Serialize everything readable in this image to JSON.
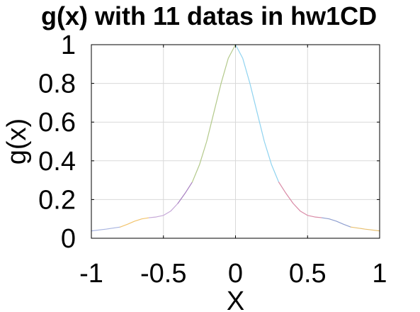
{
  "chart_data": {
    "type": "line",
    "title": "g(x) with 11 datas in hw1CD",
    "xlabel": "X",
    "ylabel": "g(x)",
    "xlim": [
      -1,
      1
    ],
    "ylim": [
      0,
      1
    ],
    "xticks": [
      -1,
      -0.5,
      0,
      0.5,
      1
    ],
    "xtick_labels": [
      "-1",
      "-0.5",
      "0",
      "0.5",
      "1"
    ],
    "yticks": [
      0,
      0.2,
      0.4,
      0.6,
      0.8,
      1
    ],
    "ytick_labels": [
      "0",
      "0.2",
      "0.4",
      "0.6",
      "0.8",
      "1"
    ],
    "grid": true,
    "series": [
      {
        "color": "#a8b4e0",
        "x": [
          -1.0,
          -0.9,
          -0.8
        ],
        "y": [
          0.038,
          0.047,
          0.058
        ]
      },
      {
        "color": "#f2c46d",
        "x": [
          -0.8,
          -0.75,
          -0.7,
          -0.65,
          -0.6
        ],
        "y": [
          0.058,
          0.072,
          0.088,
          0.1,
          0.106
        ]
      },
      {
        "color": "#c6a8d8",
        "x": [
          -0.6,
          -0.55,
          -0.5,
          -0.45,
          -0.4
        ],
        "y": [
          0.106,
          0.11,
          0.118,
          0.14,
          0.18
        ]
      },
      {
        "color": "#a77fc0",
        "x": [
          -0.4,
          -0.35,
          -0.3
        ],
        "y": [
          0.18,
          0.232,
          0.29
        ]
      },
      {
        "color": "#b3c98a",
        "x": [
          -0.3,
          -0.25,
          -0.2,
          -0.15,
          -0.1,
          -0.05,
          0.0
        ],
        "y": [
          0.29,
          0.38,
          0.5,
          0.65,
          0.8,
          0.93,
          1.0
        ]
      },
      {
        "color": "#8fd3f0",
        "x": [
          0.0,
          0.05,
          0.1,
          0.15,
          0.2,
          0.25,
          0.3
        ],
        "y": [
          1.0,
          0.93,
          0.8,
          0.65,
          0.5,
          0.38,
          0.29
        ]
      },
      {
        "color": "#d98aa6",
        "x": [
          0.3,
          0.35,
          0.4,
          0.45,
          0.5,
          0.55,
          0.6
        ],
        "y": [
          0.29,
          0.232,
          0.18,
          0.14,
          0.118,
          0.11,
          0.106
        ]
      },
      {
        "color": "#8f9fd0",
        "x": [
          0.6,
          0.65,
          0.7,
          0.75,
          0.8
        ],
        "y": [
          0.106,
          0.1,
          0.088,
          0.072,
          0.058
        ]
      },
      {
        "color": "#e8c070",
        "x": [
          0.8,
          0.9,
          1.0
        ],
        "y": [
          0.058,
          0.047,
          0.038
        ]
      }
    ]
  }
}
